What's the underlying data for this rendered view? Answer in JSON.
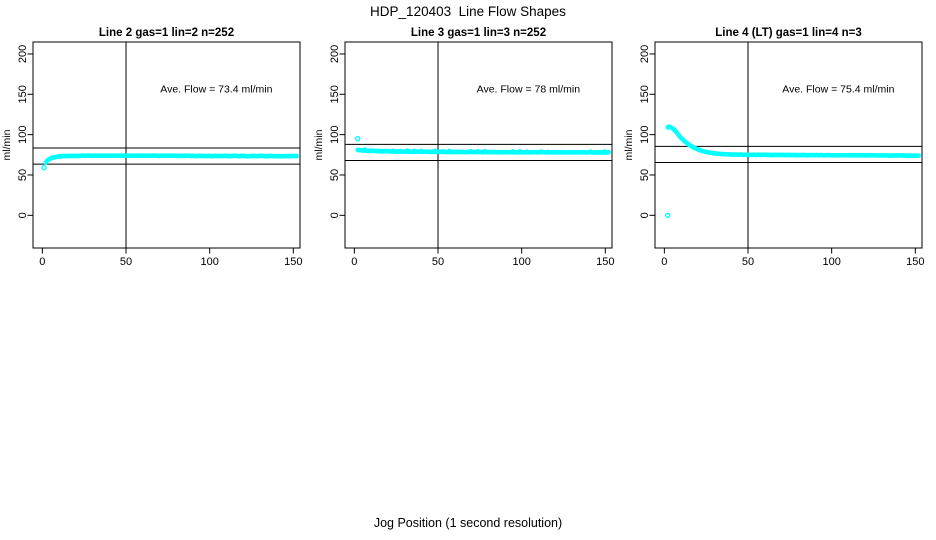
{
  "page": {
    "title": "HDP_120403  Line Flow Shapes",
    "xlabel": "Jog Position (1 second resolution)",
    "background": "#ffffff",
    "axis_color": "#000000",
    "marker_color": "#00FFFF"
  },
  "chart_data": [
    {
      "type": "scatter",
      "title": "Line 2 gas=1 lin=2 n=252",
      "annotation": "Ave. Flow =  73.4  ml/min",
      "ave_flow_ml_min": 73.4,
      "n": 252,
      "ylabel": "ml/min",
      "xlim": [
        -5.6,
        154
      ],
      "ylim": [
        -40.5,
        214.8
      ],
      "xticks": [
        0,
        50,
        100,
        150
      ],
      "yticks": [
        0,
        50,
        100,
        150,
        200
      ],
      "hlines": [
        83.4,
        63.4
      ],
      "vline_x": 50,
      "marker": "open-circle",
      "marker_color": "#00FFFF",
      "curve_points": [
        [
          2,
          65.5
        ],
        [
          3,
          68
        ],
        [
          4,
          69.5
        ],
        [
          6,
          71.5
        ],
        [
          9,
          72.8
        ],
        [
          14,
          73.5
        ],
        [
          25,
          73.9
        ],
        [
          50,
          73.9
        ],
        [
          100,
          73.6
        ],
        [
          152,
          73.3
        ]
      ],
      "n_markers": 250,
      "jitter": 0.5,
      "spike_every": 0,
      "spike_amp": 0,
      "outlier_points": [
        [
          1,
          59
        ]
      ],
      "annotation_xy": [
        104,
        152
      ]
    },
    {
      "type": "scatter",
      "title": "Line 3 gas=1 lin=3 n=252",
      "annotation": "Ave. Flow =  78  ml/min",
      "ave_flow_ml_min": 78,
      "n": 252,
      "ylabel": "ml/min",
      "xlim": [
        -5.6,
        154
      ],
      "ylim": [
        -40.5,
        214.8
      ],
      "xticks": [
        0,
        50,
        100,
        150
      ],
      "yticks": [
        0,
        50,
        100,
        150,
        200
      ],
      "hlines": [
        88,
        68
      ],
      "vline_x": 50,
      "marker": "open-circle",
      "marker_color": "#00FFFF",
      "curve_points": [
        [
          2,
          81
        ],
        [
          5,
          80.3
        ],
        [
          12,
          79.6
        ],
        [
          25,
          79
        ],
        [
          50,
          78.6
        ],
        [
          100,
          78.1
        ],
        [
          152,
          77.9
        ]
      ],
      "n_markers": 250,
      "jitter": 0.5,
      "spike_every": 7,
      "spike_amp": 1.6,
      "outlier_points": [
        [
          2,
          95
        ]
      ],
      "annotation_xy": [
        104,
        152
      ]
    },
    {
      "type": "scatter",
      "title": "Line 4 (LT) gas=1 lin=4 n=3",
      "annotation": "Ave. Flow =  75.4  ml/min",
      "ave_flow_ml_min": 75.4,
      "n": 3,
      "ylabel": "ml/min",
      "xlim": [
        -5.6,
        154
      ],
      "ylim": [
        -40.5,
        214.8
      ],
      "xticks": [
        0,
        50,
        100,
        150
      ],
      "yticks": [
        0,
        50,
        100,
        150,
        200
      ],
      "hlines": [
        85.4,
        65.4
      ],
      "vline_x": 50,
      "marker": "open-circle",
      "marker_color": "#00FFFF",
      "curve_points": [
        [
          2,
          109
        ],
        [
          3,
          110
        ],
        [
          4,
          109
        ],
        [
          6,
          106
        ],
        [
          8,
          101
        ],
        [
          10,
          96
        ],
        [
          12,
          92
        ],
        [
          15,
          87
        ],
        [
          18,
          83.5
        ],
        [
          22,
          80
        ],
        [
          26,
          78
        ],
        [
          31,
          76.5
        ],
        [
          38,
          75.5
        ],
        [
          50,
          75
        ],
        [
          80,
          74.6
        ],
        [
          120,
          74.3
        ],
        [
          152,
          74
        ]
      ],
      "n_markers": 250,
      "jitter": 0.4,
      "spike_every": 0,
      "spike_amp": 0,
      "outlier_points": [
        [
          2,
          0
        ]
      ],
      "annotation_xy": [
        104,
        152
      ]
    }
  ]
}
